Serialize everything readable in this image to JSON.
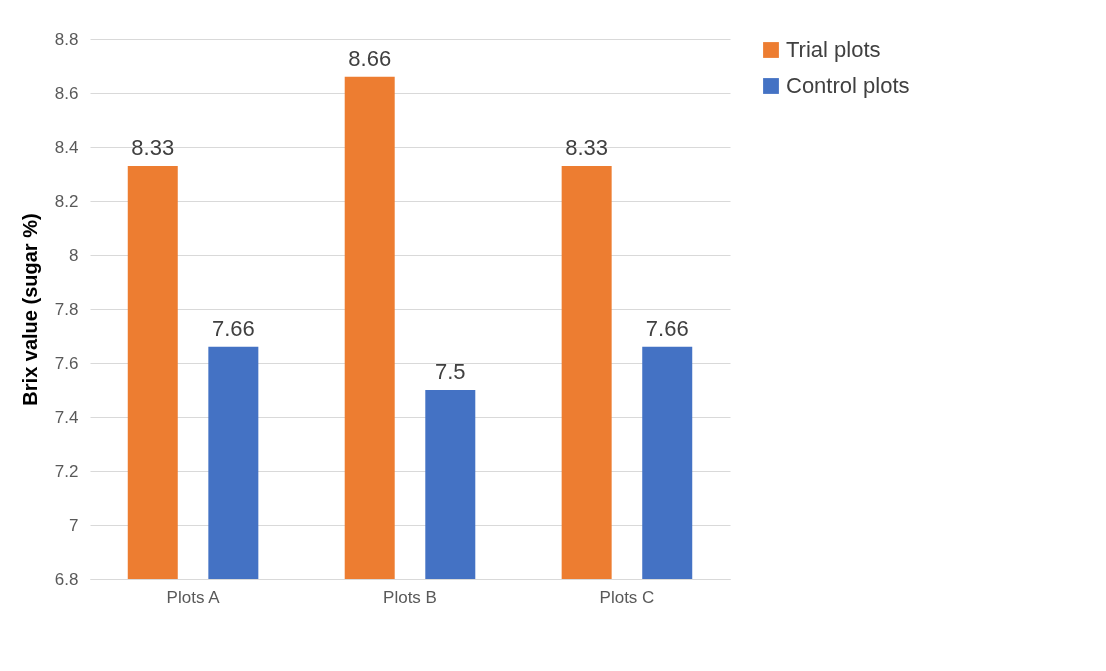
{
  "chart_data": {
    "type": "bar",
    "ylabel": "Brix value (sugar %)",
    "categories": [
      "Plots A",
      "Plots B",
      "Plots C"
    ],
    "series": [
      {
        "name": "Trial plots",
        "color": "#ed7d31",
        "values": [
          8.33,
          8.66,
          8.33
        ]
      },
      {
        "name": "Control plots",
        "color": "#4472c4",
        "values": [
          7.66,
          7.5,
          7.66
        ]
      }
    ],
    "ylim": [
      6.8,
      8.8
    ],
    "yticks": [
      6.8,
      7,
      7.2,
      7.4,
      7.6,
      7.8,
      8,
      8.2,
      8.4,
      8.6,
      8.8
    ],
    "grid": "y",
    "legend": "right",
    "data_labels": true
  }
}
